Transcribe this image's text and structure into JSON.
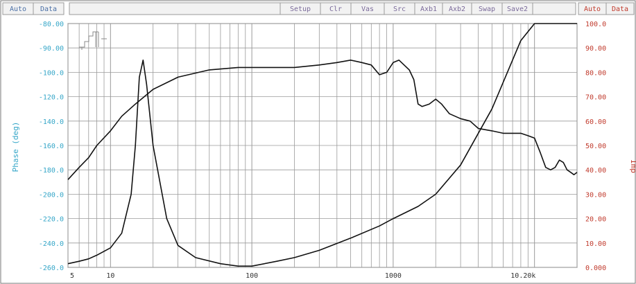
{
  "toolbar": {
    "left_buttons": [
      "Auto",
      "Data"
    ],
    "right_buttons": [
      "Setup",
      "Clr",
      "Vas",
      "Src",
      "Axb1",
      "Axb2",
      "Swap",
      "Save2"
    ],
    "right_axis_buttons": [
      "Auto",
      "Data"
    ]
  },
  "colors": {
    "background": "#ffffff",
    "grid": "#9a9a9a",
    "curve": "#111111",
    "left_axis": "#35a6c8",
    "right_axis": "#c0392b",
    "toolbar_face": "#f2f2f2"
  },
  "logo": "clio-logo",
  "chart_data": {
    "type": "line",
    "x_scale": "log",
    "xlim": [
      5,
      20000
    ],
    "x_tick_labels": [
      "5",
      "10",
      "100",
      "1000",
      "10.20k"
    ],
    "x_tick_values": [
      5,
      10,
      100,
      1000,
      10200
    ],
    "left_axis": {
      "label": "Phase (deg)",
      "ylim": [
        -100,
        -260
      ],
      "tick_labels": [
        "-80.00",
        "-90.00",
        "-100.0",
        "-120.0",
        "-140.0",
        "-160.0",
        "-180.0",
        "-200.0",
        "-220.0",
        "-240.0",
        "-260.0"
      ]
    },
    "right_axis": {
      "label": "Imp",
      "ylim": [
        0,
        100
      ],
      "tick_labels": [
        "100.0",
        "90.00",
        "80.00",
        "70.00",
        "60.00",
        "50.00",
        "40.00",
        "30.00",
        "20.00",
        "10.00",
        "0.000"
      ]
    },
    "grid": true,
    "series": [
      {
        "values_axis": "right",
        "x": [
          5,
          6,
          7,
          8,
          10,
          12,
          14,
          15,
          16,
          17,
          18,
          20,
          25,
          30,
          40,
          60,
          80,
          100,
          150,
          200,
          300,
          500,
          800,
          1000,
          1500,
          2000,
          3000,
          5000,
          8000,
          10000,
          20000
        ],
        "values": [
          1.5,
          2.5,
          3.5,
          5,
          8,
          14,
          30,
          50,
          78,
          85,
          75,
          50,
          20,
          9,
          4,
          1.5,
          0.5,
          0.5,
          2.5,
          4,
          7,
          12,
          17,
          20,
          25,
          30,
          42,
          65,
          93,
          100,
          100
        ]
      },
      {
        "values_axis": "right",
        "x": [
          5,
          6,
          7,
          8,
          10,
          12,
          15,
          20,
          30,
          50,
          80,
          100,
          200,
          300,
          400,
          500,
          600,
          700,
          800,
          900,
          1000,
          1100,
          1300,
          1400,
          1500,
          1600,
          1800,
          2000,
          2200,
          2500,
          3000,
          3500,
          4000,
          5000,
          6000,
          7000,
          8000,
          9000,
          10000,
          11000,
          12000,
          13000,
          14000,
          15000,
          16000,
          17000,
          18000,
          19000,
          20000
        ],
        "values": [
          36,
          41,
          45,
          50,
          56,
          62,
          67,
          73,
          78,
          81,
          82,
          82,
          82,
          83,
          84,
          85,
          84,
          83,
          79,
          80,
          84,
          85,
          81,
          77,
          67,
          66,
          67,
          69,
          67,
          63,
          61,
          60,
          57,
          56,
          55,
          55,
          55,
          54,
          53,
          47,
          41,
          40,
          41,
          44,
          43,
          40,
          39,
          38,
          39
        ]
      }
    ]
  }
}
